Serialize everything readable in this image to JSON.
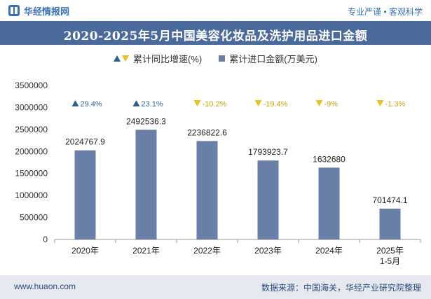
{
  "header": {
    "logo_text": "华经情报网",
    "tagline": "专业严谨 • 客观科学",
    "title": "2020-2025年5月中国美容化妆品及洗护用品进口金额"
  },
  "legend": {
    "growth_label": "累计同比增速(%)",
    "amount_label": "累计进口金额(万美元)"
  },
  "footer": {
    "website": "www.huaon.com",
    "source": "数据来源：中国海关，华经产业研究院整理"
  },
  "colors": {
    "bar": "#6a7fa8",
    "up": "#2f5f8a",
    "down": "#e8c21f",
    "title_bg": "#4a6a9c"
  },
  "chart_data": {
    "type": "bar",
    "categories": [
      "2020年",
      "2021年",
      "2022年",
      "2023年",
      "2024年",
      "2025年\n1-5月"
    ],
    "ylim": [
      0,
      3500000
    ],
    "yticks": [
      "0",
      "500000",
      "1000000",
      "1500000",
      "2000000",
      "2500000",
      "3000000",
      "3500000"
    ],
    "series": [
      {
        "name": "累计进口金额(万美元)",
        "values": [
          2024767.9,
          2492536.3,
          2236822.6,
          1793923.7,
          1632680,
          701474.1
        ],
        "labels": [
          "2024767.9",
          "2492536.3",
          "2236822.6",
          "1793923.7",
          "1632680",
          "701474.1"
        ]
      },
      {
        "name": "累计同比增速(%)",
        "values": [
          29.4,
          23.1,
          -10.2,
          -19.4,
          -9,
          -1.3
        ],
        "labels": [
          "29.4%",
          "23.1%",
          "-10.2%",
          "-19.4%",
          "-9%",
          "-1.3%"
        ]
      }
    ]
  }
}
